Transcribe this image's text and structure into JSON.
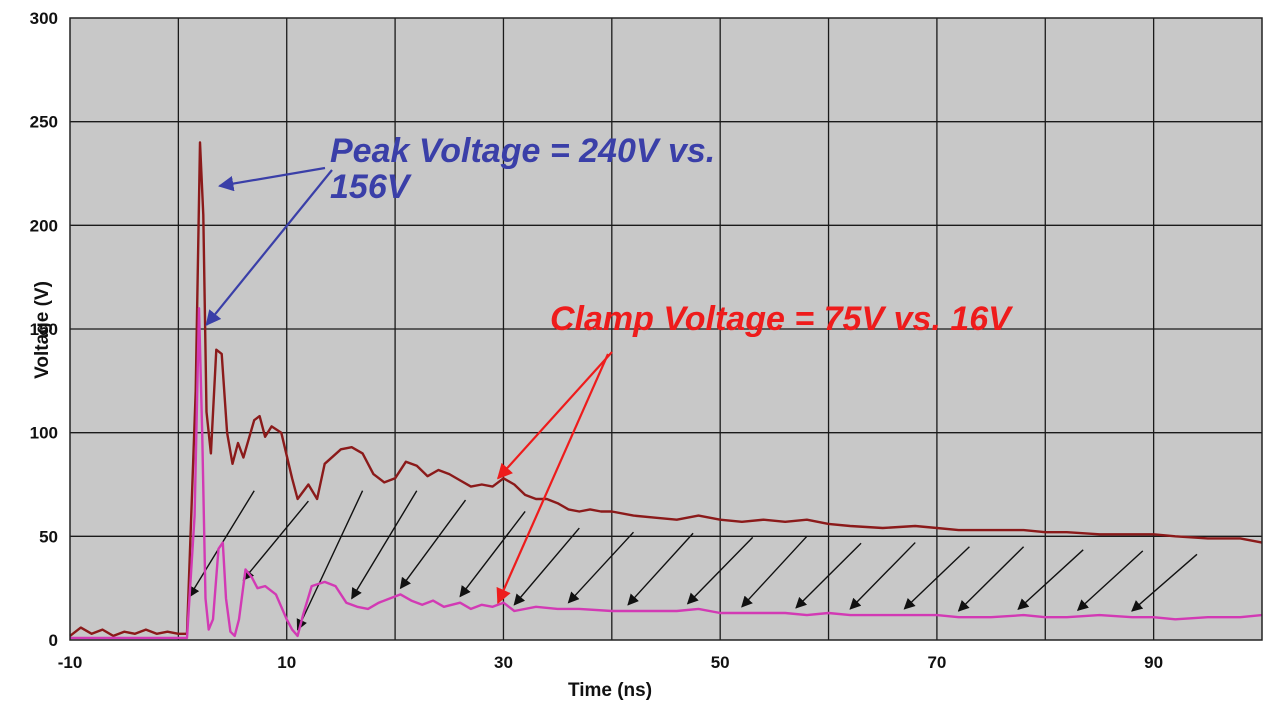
{
  "chart_data": {
    "type": "line",
    "xlabel": "Time (ns)",
    "ylabel": "Voltage (V)",
    "xlim": [
      -10,
      100
    ],
    "ylim": [
      0,
      300
    ],
    "x_tick_labels": [
      "-10",
      "10",
      "30",
      "50",
      "70",
      "90"
    ],
    "y_tick_labels": [
      "0",
      "50",
      "100",
      "150",
      "200",
      "250",
      "300"
    ],
    "grid": true,
    "background": "#c8c8c8",
    "series": [
      {
        "color": "#8b1a1a",
        "points": [
          [
            -10,
            2
          ],
          [
            -9,
            6
          ],
          [
            -8,
            3
          ],
          [
            -7,
            5
          ],
          [
            -6,
            2
          ],
          [
            -5,
            4
          ],
          [
            -4,
            3
          ],
          [
            -3,
            5
          ],
          [
            -2,
            3
          ],
          [
            -1,
            4
          ],
          [
            0,
            3
          ],
          [
            0.8,
            3
          ],
          [
            1.6,
            120
          ],
          [
            2,
            240
          ],
          [
            2.3,
            205
          ],
          [
            2.6,
            110
          ],
          [
            3,
            90
          ],
          [
            3.5,
            140
          ],
          [
            4,
            138
          ],
          [
            4.5,
            100
          ],
          [
            5,
            85
          ],
          [
            5.5,
            95
          ],
          [
            6,
            88
          ],
          [
            7,
            106
          ],
          [
            7.5,
            108
          ],
          [
            8,
            98
          ],
          [
            8.6,
            103
          ],
          [
            9.5,
            100
          ],
          [
            10.5,
            78
          ],
          [
            11,
            68
          ],
          [
            12,
            75
          ],
          [
            12.8,
            68
          ],
          [
            13.5,
            85
          ],
          [
            15,
            92
          ],
          [
            16,
            93
          ],
          [
            17,
            90
          ],
          [
            18,
            80
          ],
          [
            19,
            76
          ],
          [
            20,
            78
          ],
          [
            21,
            86
          ],
          [
            22,
            84
          ],
          [
            23,
            79
          ],
          [
            24,
            82
          ],
          [
            25,
            80
          ],
          [
            26,
            77
          ],
          [
            27,
            74
          ],
          [
            28,
            75
          ],
          [
            29,
            74
          ],
          [
            30,
            78
          ],
          [
            31,
            75
          ],
          [
            32,
            70
          ],
          [
            33,
            68
          ],
          [
            34,
            68
          ],
          [
            35,
            66
          ],
          [
            36,
            63
          ],
          [
            37,
            62
          ],
          [
            38,
            63
          ],
          [
            39,
            62
          ],
          [
            40,
            62
          ],
          [
            42,
            60
          ],
          [
            44,
            59
          ],
          [
            46,
            58
          ],
          [
            48,
            60
          ],
          [
            50,
            58
          ],
          [
            52,
            57
          ],
          [
            54,
            58
          ],
          [
            56,
            57
          ],
          [
            58,
            58
          ],
          [
            60,
            56
          ],
          [
            62,
            55
          ],
          [
            65,
            54
          ],
          [
            68,
            55
          ],
          [
            70,
            54
          ],
          [
            72,
            53
          ],
          [
            75,
            53
          ],
          [
            78,
            53
          ],
          [
            80,
            52
          ],
          [
            82,
            52
          ],
          [
            85,
            51
          ],
          [
            88,
            51
          ],
          [
            90,
            51
          ],
          [
            92,
            50
          ],
          [
            95,
            49
          ],
          [
            98,
            49
          ],
          [
            100,
            47
          ]
        ]
      },
      {
        "color": "#d23ab4",
        "points": [
          [
            -10,
            1
          ],
          [
            0,
            1
          ],
          [
            0.8,
            1
          ],
          [
            1.5,
            60
          ],
          [
            1.9,
            160
          ],
          [
            2.2,
            100
          ],
          [
            2.5,
            20
          ],
          [
            2.8,
            5
          ],
          [
            3.2,
            10
          ],
          [
            3.7,
            44
          ],
          [
            4.1,
            47
          ],
          [
            4.4,
            20
          ],
          [
            4.8,
            4
          ],
          [
            5.2,
            2
          ],
          [
            5.6,
            10
          ],
          [
            6.2,
            34
          ],
          [
            6.8,
            30
          ],
          [
            7.3,
            25
          ],
          [
            8,
            26
          ],
          [
            9,
            22
          ],
          [
            10,
            10
          ],
          [
            10.5,
            5
          ],
          [
            11,
            2
          ],
          [
            11.5,
            12
          ],
          [
            12.3,
            26
          ],
          [
            13.5,
            28
          ],
          [
            14.5,
            26
          ],
          [
            15.5,
            18
          ],
          [
            16.5,
            16
          ],
          [
            17.5,
            15
          ],
          [
            18.5,
            18
          ],
          [
            19.5,
            20
          ],
          [
            20.5,
            22
          ],
          [
            21.5,
            19
          ],
          [
            22.5,
            17
          ],
          [
            23.5,
            19
          ],
          [
            24.5,
            16
          ],
          [
            26,
            18
          ],
          [
            27,
            15
          ],
          [
            28,
            17
          ],
          [
            29,
            16
          ],
          [
            30,
            18
          ],
          [
            31,
            14
          ],
          [
            33,
            16
          ],
          [
            35,
            15
          ],
          [
            37,
            15
          ],
          [
            40,
            14
          ],
          [
            43,
            14
          ],
          [
            46,
            14
          ],
          [
            48,
            15
          ],
          [
            50,
            13
          ],
          [
            53,
            13
          ],
          [
            56,
            13
          ],
          [
            58,
            12
          ],
          [
            60,
            13
          ],
          [
            62,
            12
          ],
          [
            65,
            12
          ],
          [
            68,
            12
          ],
          [
            70,
            12
          ],
          [
            72,
            11
          ],
          [
            75,
            11
          ],
          [
            78,
            12
          ],
          [
            80,
            11
          ],
          [
            82,
            11
          ],
          [
            85,
            12
          ],
          [
            88,
            11
          ],
          [
            90,
            11
          ],
          [
            92,
            10
          ],
          [
            95,
            11
          ],
          [
            98,
            11
          ],
          [
            100,
            12
          ]
        ]
      }
    ],
    "annotations": [
      {
        "text_lines": [
          "Peak Voltage = 240V vs.",
          "156V"
        ],
        "color": "#3a3fa8"
      },
      {
        "text_lines": [
          "Clamp Voltage = 75V vs. 16V"
        ],
        "color": "#ee1c1c"
      }
    ]
  }
}
